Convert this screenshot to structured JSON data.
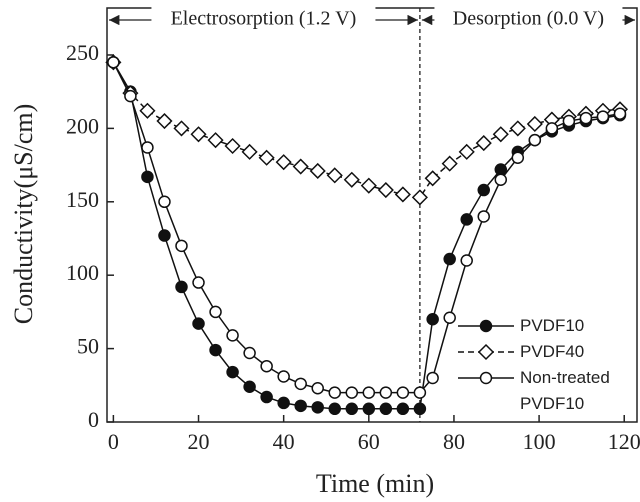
{
  "chart_data": {
    "type": "line",
    "xlabel": "Time (min)",
    "ylabel": "Conductivity(μS/cm)",
    "annotations": [
      "Electrosorption (1.2 V)",
      "Desorption (0.0 V)"
    ],
    "switch_x": 72,
    "x": [
      0,
      4,
      8,
      12,
      16,
      20,
      24,
      28,
      32,
      36,
      40,
      44,
      48,
      52,
      56,
      60,
      64,
      68,
      72,
      75,
      79,
      83,
      87,
      91,
      95,
      99,
      103,
      107,
      111,
      115,
      119
    ],
    "series": [
      {
        "name": "PVDF10",
        "color": "#111111",
        "marker": "filled-circle",
        "values": [
          245,
          225,
          167,
          127,
          92,
          67,
          49,
          34,
          24,
          17,
          13,
          11,
          10,
          9,
          9,
          9,
          9,
          9,
          9,
          70,
          111,
          138,
          158,
          172,
          184,
          192,
          198,
          202,
          205,
          207,
          209
        ]
      },
      {
        "name": "PVDF40",
        "color": "#111111",
        "marker": "open-diamond",
        "dash": true,
        "values": [
          245,
          224,
          212,
          205,
          200,
          196,
          192,
          188,
          184,
          180,
          177,
          174,
          171,
          168,
          165,
          161,
          158,
          155,
          153,
          166,
          176,
          184,
          190,
          196,
          200,
          203,
          206,
          208,
          210,
          212,
          213
        ]
      },
      {
        "name": "Non-treated PVDF10",
        "color": "#111111",
        "marker": "open-circle",
        "values": [
          245,
          222,
          187,
          150,
          120,
          95,
          75,
          59,
          47,
          38,
          31,
          26,
          23,
          20,
          20,
          20,
          20,
          20,
          20,
          30,
          71,
          110,
          140,
          165,
          180,
          192,
          200,
          205,
          207,
          208,
          210
        ]
      }
    ],
    "xlim": [
      -1.5,
      123
    ],
    "ylim": [
      0,
      282
    ],
    "xticks": [
      0,
      20,
      40,
      60,
      80,
      100,
      120
    ],
    "yticks": [
      0,
      50,
      100,
      150,
      200,
      250
    ]
  }
}
